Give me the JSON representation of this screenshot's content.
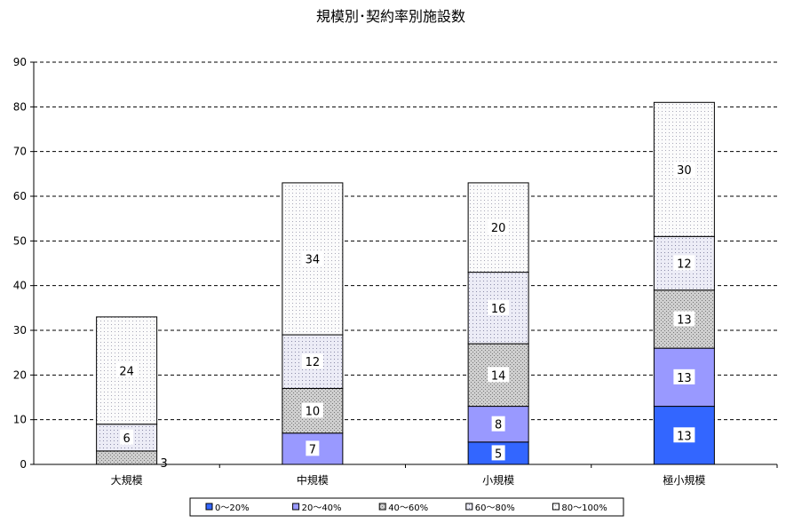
{
  "chart_data": {
    "type": "bar",
    "stacked": true,
    "title": "規模別･契約率別施設数",
    "xlabel": "",
    "ylabel": "",
    "categories": [
      "大規模",
      "中規模",
      "小規模",
      "極小規模"
    ],
    "ylim": [
      0,
      90
    ],
    "yticks": [
      "0",
      "10",
      "20",
      "30",
      "40",
      "50",
      "60",
      "70",
      "80",
      "90"
    ],
    "grid": true,
    "legend_position": "bottom",
    "series": [
      {
        "name": "0～20%",
        "values": [
          0,
          0,
          5,
          13
        ],
        "color": "#3366ff"
      },
      {
        "name": "20～40%",
        "values": [
          0,
          7,
          8,
          13
        ],
        "color": "#9999ff"
      },
      {
        "name": "40～60%",
        "values": [
          3,
          10,
          14,
          13
        ],
        "color": "#c8c8c8"
      },
      {
        "name": "60～80%",
        "values": [
          6,
          12,
          16,
          12
        ],
        "color": "#e6e6f2"
      },
      {
        "name": "80～100%",
        "values": [
          24,
          34,
          20,
          30
        ],
        "color": "#f6f6f6"
      }
    ],
    "data_labels": [
      [
        null,
        null,
        "5",
        "13"
      ],
      [
        null,
        "7",
        "8",
        "13"
      ],
      [
        "3",
        "10",
        "14",
        "13"
      ],
      [
        "6",
        "12",
        "16",
        "12"
      ],
      [
        "24",
        "34",
        "20",
        "30"
      ]
    ]
  }
}
